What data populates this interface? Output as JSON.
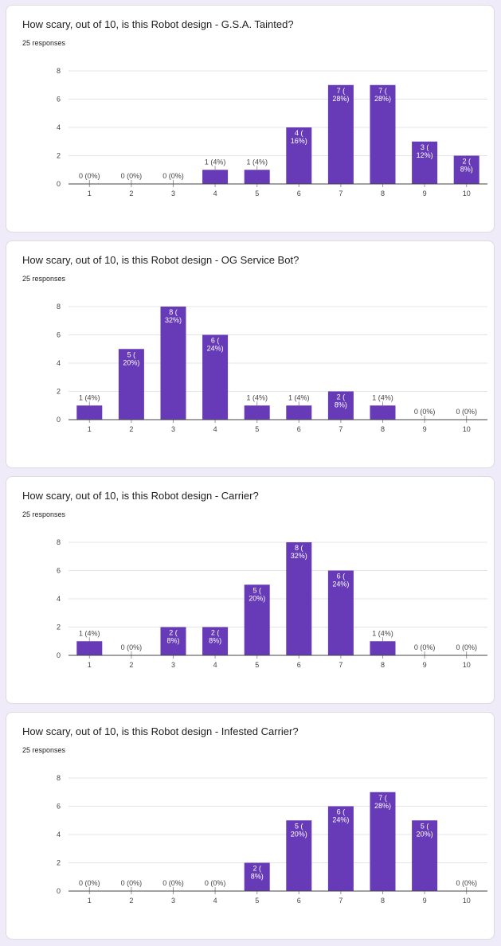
{
  "colors": {
    "bar": "#673ab7",
    "grid": "#e4e4e4",
    "axis": "#444444",
    "page_bg": "#f0ebf8"
  },
  "chart_data": [
    {
      "type": "bar",
      "title": "How scary, out of 10, is this Robot design - G.S.A. Tainted?",
      "subtitle": "25 responses",
      "categories": [
        "1",
        "2",
        "3",
        "4",
        "5",
        "6",
        "7",
        "8",
        "9",
        "10"
      ],
      "values": [
        0,
        0,
        0,
        1,
        1,
        4,
        7,
        7,
        3,
        2
      ],
      "data_labels": [
        "0 (0%)",
        "0 (0%)",
        "0 (0%)",
        "1 (4%)",
        "1 (4%)",
        "4 (16%)",
        "7 (28%)",
        "7 (28%)",
        "3 (12%)",
        "2 (8%)"
      ],
      "ylim": [
        0,
        8
      ],
      "yticks": [
        0,
        2,
        4,
        6,
        8
      ],
      "grid": true
    },
    {
      "type": "bar",
      "title": "How scary, out of 10, is this Robot design - OG Service Bot?",
      "subtitle": "25 responses",
      "categories": [
        "1",
        "2",
        "3",
        "4",
        "5",
        "6",
        "7",
        "8",
        "9",
        "10"
      ],
      "values": [
        1,
        5,
        8,
        6,
        1,
        1,
        2,
        1,
        0,
        0
      ],
      "data_labels": [
        "1 (4%)",
        "5 (20%)",
        "8 (32%)",
        "6 (24%)",
        "1 (4%)",
        "1 (4%)",
        "2 (8%)",
        "1 (4%)",
        "0 (0%)",
        "0 (0%)"
      ],
      "ylim": [
        0,
        8
      ],
      "yticks": [
        0,
        2,
        4,
        6,
        8
      ],
      "grid": true
    },
    {
      "type": "bar",
      "title": "How scary, out of 10, is this Robot design - Carrier?",
      "subtitle": "25 responses",
      "categories": [
        "1",
        "2",
        "3",
        "4",
        "5",
        "6",
        "7",
        "8",
        "9",
        "10"
      ],
      "values": [
        1,
        0,
        2,
        2,
        5,
        8,
        6,
        1,
        0,
        0
      ],
      "data_labels": [
        "1 (4%)",
        "0 (0%)",
        "2 (8%)",
        "2 (8%)",
        "5 (20%)",
        "8 (32%)",
        "6 (24%)",
        "1 (4%)",
        "0 (0%)",
        "0 (0%)"
      ],
      "ylim": [
        0,
        8
      ],
      "yticks": [
        0,
        2,
        4,
        6,
        8
      ],
      "grid": true
    },
    {
      "type": "bar",
      "title": "How scary, out of 10, is this Robot design - Infested Carrier?",
      "subtitle": "25 responses",
      "categories": [
        "1",
        "2",
        "3",
        "4",
        "5",
        "6",
        "7",
        "8",
        "9",
        "10"
      ],
      "values": [
        0,
        0,
        0,
        0,
        2,
        5,
        6,
        7,
        5,
        0
      ],
      "data_labels": [
        "0 (0%)",
        "0 (0%)",
        "0 (0%)",
        "0 (0%)",
        "2 (8%)",
        "5 (20%)",
        "6 (24%)",
        "7 (28%)",
        "5 (20%)",
        "0 (0%)"
      ],
      "ylim": [
        0,
        8
      ],
      "yticks": [
        0,
        2,
        4,
        6,
        8
      ],
      "grid": true
    }
  ]
}
